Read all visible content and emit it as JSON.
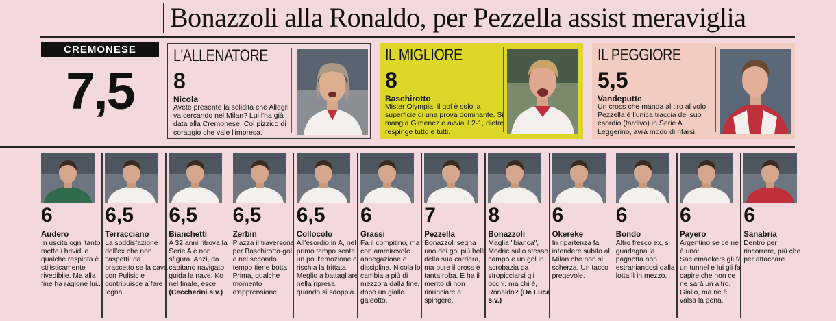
{
  "headline": "Bonazzoli alla Ronaldo, per Pezzella assist meraviglia",
  "team": {
    "name": "CREMONESE",
    "grade": "7,5"
  },
  "coach": {
    "label": "L'ALLENATORE",
    "grade": "8",
    "name": "Nicola",
    "text": "Avete presente la solidità che Allegri va cercando nel Milan? Lui l'ha già data alla Cremonese. Col pizzico di coraggio che vale l'impresa."
  },
  "best": {
    "label": "IL MIGLIORE",
    "grade": "8",
    "name": "Baschirotto",
    "text": "Mister Olympia: il gol è solo la superficie di una prova dominante. Si mangia Gimenez e avvia il 2-1, dietro respinge tutto e tutti."
  },
  "worst": {
    "label": "IL PEGGIORE",
    "grade": "5,5",
    "name": "Vandeputte",
    "text": "Un cross che manda al tiro al volo Pezzella è l'unica traccia del suo esordio (tardivo) in Serie A. Leggerino, avrà modo di rifarsi."
  },
  "colors": {
    "best_bg": "#ddd72a",
    "worst_bg": "#f2ccc0",
    "page_bg": "#f3d9dd",
    "jersey_red": "#c0303a",
    "jersey_white": "#f4f0ee"
  },
  "players": [
    {
      "grade": "6",
      "name": "Audero",
      "text": "In uscita ogni tanto mette i brividi e qualche respinta è stilisticamente rivedibile. Ma alla fine ha ragione lui...",
      "extra": "",
      "jersey": "green"
    },
    {
      "grade": "6,5",
      "name": "Terracciano",
      "text": "La soddisfazione dell'ex che non t'aspetti: da braccetto se la cava con Pulisic e contribuisce a fare legna.",
      "extra": "",
      "jersey": "white"
    },
    {
      "grade": "6,5",
      "name": "Bianchetti",
      "text": "A 32 anni ritrova la Serie A e non sfigura. Anzi, da capitano navigato guida la nave. Ko nel finale, esce",
      "extra": "(Ceccherini s.v.)",
      "jersey": "white"
    },
    {
      "grade": "6,5",
      "name": "Zerbin",
      "text": "Piazza il traversone per Baschirotto-gol e nel secondo tempo tiene botta. Prima, qualche momento d'apprensione.",
      "extra": "",
      "jersey": "white"
    },
    {
      "grade": "6,5",
      "name": "Collocolo",
      "text": "All'esordio in A, nel primo tempo sente un po' l'emozione e rischia la frittata. Meglio a battagliare nella ripresa, quando si sdoppia.",
      "extra": "",
      "jersey": "white"
    },
    {
      "grade": "6",
      "name": "Grassi",
      "text": "Fa il compitino, ma con ammirevole abnegazione e disciplina. Nicola lo cambia a più di mezzora dalla fine, dopo un giallo galeotto.",
      "extra": "",
      "jersey": "white"
    },
    {
      "grade": "7",
      "name": "Pezzella",
      "text": "Bonazzoli segna uno dei gol più belli della sua carriera, ma pure il cross è tanta roba. E ha il merito di non rinunciare a spingere.",
      "extra": "",
      "jersey": "white"
    },
    {
      "grade": "8",
      "name": "Bonazzoli",
      "text": "Maglia \"bianca\", Modric sullo stesso campo e un gol in acrobazia da stropicciarsi gli occhi: ma chi è, Ronaldo?",
      "extra": "(De Luca s.v.)",
      "jersey": "white"
    },
    {
      "grade": "6",
      "name": "Okereke",
      "text": "In ripartenza fa intendere subito al Milan che non si scherza. Un tacco pregevole.",
      "extra": "",
      "jersey": "white"
    },
    {
      "grade": "6",
      "name": "Bondo",
      "text": "Altro fresco ex, si guadagna la pagnotta non estraniandosi dalla lotta lì in mezzo.",
      "extra": "",
      "jersey": "white"
    },
    {
      "grade": "6",
      "name": "Payero",
      "text": "Argentino se ce ne è uno: Saelemaekers gli fa un tunnel e lui gli fa capire che non ce ne sarà un altro. Giallo, ma ne è valsa la pena.",
      "extra": "",
      "jersey": "white"
    },
    {
      "grade": "6",
      "name": "Sanabria",
      "text": "Dentro per rincorrere, più che per attaccare.",
      "extra": "",
      "jersey": "red"
    }
  ]
}
